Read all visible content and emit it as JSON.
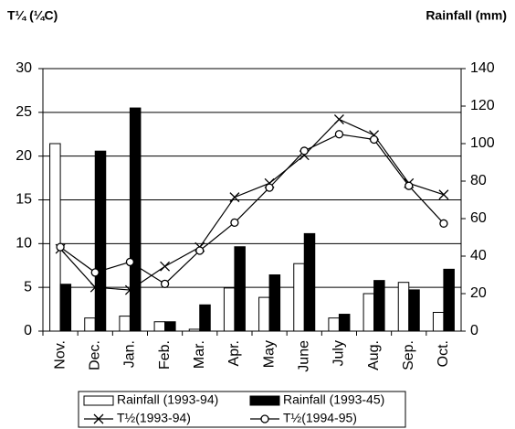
{
  "chart_data": {
    "type": "bar",
    "ylabel": "T¼ (¼C)",
    "y2label": "Rainfall (mm)",
    "categories": [
      "Nov.",
      "Dec.",
      "Jan.",
      "Feb.",
      "Mar.",
      "Apr.",
      "May",
      "June",
      "July",
      "Aug.",
      "Sep.",
      "Oct."
    ],
    "series": [
      {
        "name": "Rainfall (1993-94)",
        "type": "bar",
        "axis": "y2",
        "color": "#ffffff",
        "values": [
          100,
          7,
          8,
          5,
          1,
          23,
          18,
          36,
          7,
          20,
          26,
          10
        ]
      },
      {
        "name": "Rainfall (1993-45)",
        "type": "bar",
        "axis": "y2",
        "color": "#000000",
        "values": [
          25,
          96,
          119,
          5,
          14,
          45,
          30,
          52,
          9,
          27,
          22,
          33
        ]
      },
      {
        "name": "T½(1993-94)",
        "type": "line",
        "marker": "x",
        "color": "#000000",
        "values": [
          9.4,
          5.0,
          4.7,
          7.4,
          9.6,
          15.3,
          16.9,
          20.1,
          24.2,
          22.4,
          16.9,
          15.6
        ]
      },
      {
        "name": "T½(1994-95)",
        "type": "line",
        "marker": "o",
        "color": "#000000",
        "values": [
          9.6,
          6.7,
          7.9,
          5.4,
          9.2,
          12.4,
          16.4,
          20.6,
          22.5,
          21.9,
          16.6,
          12.3
        ]
      }
    ],
    "ylim": [
      0,
      30
    ],
    "yticks": [
      0,
      5,
      10,
      15,
      20,
      25,
      30
    ],
    "y2lim": [
      0,
      140
    ],
    "y2ticks": [
      0,
      20,
      40,
      60,
      80,
      100,
      120,
      140
    ],
    "grid": true
  }
}
